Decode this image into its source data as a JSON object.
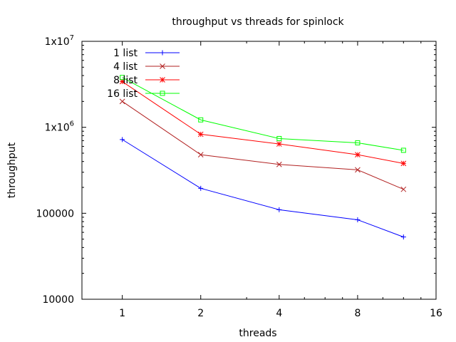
{
  "chart_data": {
    "type": "line",
    "title": "throughput vs threads for spinlock",
    "xlabel": "threads",
    "ylabel": "throughput",
    "x_scale": "log2",
    "y_scale": "log10",
    "xlim": [
      0.7,
      16
    ],
    "ylim": [
      10000,
      10000000
    ],
    "x_ticks": [
      {
        "value": 1,
        "label": "1"
      },
      {
        "value": 2,
        "label": "2"
      },
      {
        "value": 4,
        "label": "4"
      },
      {
        "value": 8,
        "label": "8"
      },
      {
        "value": 16,
        "label": "16"
      }
    ],
    "y_ticks": [
      {
        "value": 10000,
        "base": "10000",
        "exp": ""
      },
      {
        "value": 100000,
        "base": "100000",
        "exp": ""
      },
      {
        "value": 1000000,
        "base": "1x10",
        "exp": "6"
      },
      {
        "value": 10000000,
        "base": "1x10",
        "exp": "7"
      }
    ],
    "grid": false,
    "legend_position": "top-left",
    "x": [
      1,
      2,
      4,
      8,
      12
    ],
    "series": [
      {
        "name": "1 list",
        "color": "#0000ff",
        "marker": "plus",
        "values": [
          720000,
          195000,
          110000,
          84000,
          53000
        ]
      },
      {
        "name": "4 list",
        "color": "#b22222",
        "marker": "cross",
        "values": [
          2000000,
          480000,
          370000,
          320000,
          190000
        ]
      },
      {
        "name": "8 list",
        "color": "#ff0000",
        "marker": "star",
        "values": [
          3400000,
          830000,
          640000,
          480000,
          380000
        ]
      },
      {
        "name": "16 list",
        "color": "#00ff00",
        "marker": "square",
        "values": [
          3800000,
          1220000,
          740000,
          660000,
          540000
        ]
      }
    ]
  }
}
